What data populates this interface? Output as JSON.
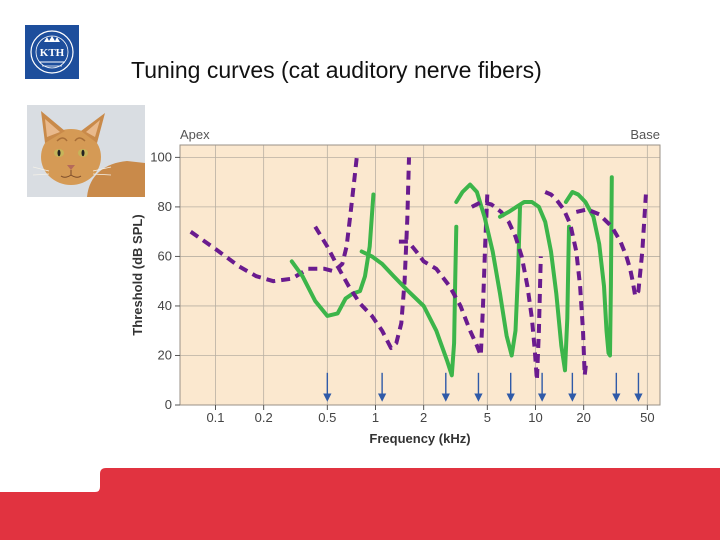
{
  "slide": {
    "title": "Tuning curves (cat auditory nerve fibers)",
    "logo_text": "KTH",
    "logo_color": "#1d4e9c",
    "band_color": "#e13340"
  },
  "chart_data": {
    "type": "line",
    "title": "",
    "xlabel": "Frequency (kHz)",
    "ylabel": "Threshold (dB SPL)",
    "x_scale": "log",
    "xlim": [
      0.06,
      60
    ],
    "ylim": [
      0,
      105
    ],
    "x_ticks": [
      0.1,
      0.2,
      0.5,
      1,
      2,
      5,
      10,
      20,
      50
    ],
    "x_tick_labels": [
      "0.1",
      "0.2",
      "0.5",
      "1",
      "2",
      "5",
      "10",
      "20",
      "50"
    ],
    "y_ticks": [
      0,
      20,
      40,
      60,
      80,
      100
    ],
    "y_tick_labels": [
      "0",
      "20",
      "40",
      "60",
      "80",
      "100"
    ],
    "top_left_label": "Apex",
    "top_right_label": "Base",
    "grid": true,
    "colors": {
      "purple": "#6a1b8f",
      "green": "#3cb54a",
      "arrow": "#2f5aa8",
      "background": "#fbe8cf"
    },
    "series": [
      {
        "style": "dashed",
        "color": "purple",
        "x": [
          0.07,
          0.1,
          0.14,
          0.18,
          0.23,
          0.3,
          0.38,
          0.48,
          0.55,
          0.62,
          0.66,
          0.7,
          0.74,
          0.77
        ],
        "y": [
          70,
          63,
          56,
          52,
          50,
          51,
          55,
          55,
          54,
          57,
          64,
          78,
          92,
          102
        ]
      },
      {
        "style": "solid",
        "color": "green",
        "x": [
          0.3,
          0.35,
          0.42,
          0.5,
          0.58,
          0.65,
          0.72,
          0.8,
          0.86,
          0.92,
          0.97
        ],
        "y": [
          58,
          52,
          42,
          36,
          37,
          43,
          45,
          46,
          52,
          64,
          85
        ]
      },
      {
        "style": "dashed",
        "color": "purple",
        "x": [
          0.42,
          0.5,
          0.58,
          0.68,
          0.8,
          0.95,
          1.1,
          1.25,
          1.35,
          1.45,
          1.52,
          1.58,
          1.62
        ],
        "y": [
          72,
          64,
          56,
          48,
          41,
          36,
          30,
          23,
          25,
          33,
          50,
          75,
          100
        ]
      },
      {
        "style": "solid",
        "color": "green",
        "x": [
          0.82,
          0.95,
          1.1,
          1.3,
          1.6,
          2.0,
          2.4,
          2.8,
          3.0,
          3.1,
          3.15,
          3.2
        ],
        "y": [
          62,
          60,
          57,
          52,
          46,
          40,
          30,
          18,
          12,
          25,
          50,
          72
        ]
      },
      {
        "style": "dashed",
        "color": "purple",
        "x": [
          1.4,
          1.6,
          1.8,
          2.0,
          2.4,
          2.9,
          3.4,
          3.9,
          4.3,
          4.55,
          4.7,
          4.85,
          5.0
        ],
        "y": [
          66,
          66,
          62,
          58,
          55,
          48,
          40,
          30,
          24,
          20,
          40,
          65,
          85
        ]
      },
      {
        "style": "solid",
        "color": "green",
        "x": [
          3.2,
          3.5,
          3.9,
          4.3,
          4.8,
          5.4,
          6.0,
          6.6,
          7.1,
          7.5,
          7.8,
          8.0
        ],
        "y": [
          82,
          86,
          89,
          86,
          76,
          62,
          45,
          28,
          20,
          30,
          55,
          80
        ]
      },
      {
        "style": "dashed",
        "color": "purple",
        "x": [
          4.0,
          4.6,
          5.3,
          6.1,
          6.8,
          7.5,
          8.2,
          8.9,
          9.5,
          9.9,
          10.2,
          10.5,
          10.8
        ],
        "y": [
          80,
          82,
          81,
          78,
          74,
          68,
          60,
          48,
          35,
          22,
          10,
          30,
          60
        ]
      },
      {
        "style": "solid",
        "color": "green",
        "x": [
          6.0,
          6.8,
          7.6,
          8.5,
          9.5,
          10.5,
          11.5,
          12.5,
          13.5,
          14.5,
          15.3,
          15.8,
          16.2
        ],
        "y": [
          76,
          78,
          80,
          82,
          82,
          80,
          74,
          62,
          45,
          24,
          14,
          35,
          72
        ]
      },
      {
        "style": "dashed",
        "color": "purple",
        "x": [
          11.5,
          12.5,
          13.5,
          15.0,
          16.5,
          18.0,
          19.0,
          19.8,
          20.3,
          20.8
        ],
        "y": [
          86,
          85,
          83,
          79,
          73,
          62,
          48,
          30,
          12,
          18
        ]
      },
      {
        "style": "solid",
        "color": "green",
        "x": [
          15.5,
          17.0,
          18.5,
          20.5,
          23.0,
          25.0,
          26.8,
          27.8,
          28.6,
          29.2,
          29.6,
          30.0
        ],
        "y": [
          82,
          86,
          85,
          82,
          76,
          65,
          48,
          30,
          21,
          20,
          48,
          92
        ]
      },
      {
        "style": "dashed",
        "color": "purple",
        "x": [
          18.0,
          21.0,
          25.0,
          30.0,
          34.0,
          37.0,
          39.0,
          40.5,
          42.0,
          44.0,
          46.5,
          49.0
        ],
        "y": [
          78,
          79,
          77,
          72,
          66,
          60,
          55,
          50,
          44,
          46,
          62,
          85
        ]
      }
    ],
    "arrows_x": [
      0.5,
      1.1,
      2.75,
      4.4,
      7.0,
      11.0,
      17.0,
      32.0,
      44.0
    ]
  }
}
